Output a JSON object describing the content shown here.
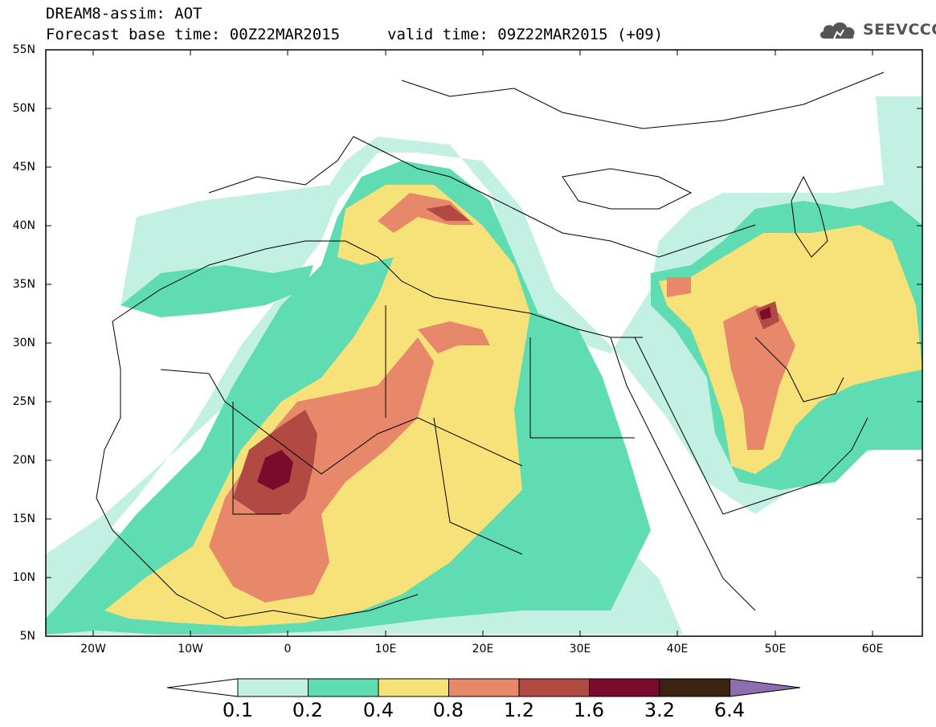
{
  "header": {
    "title": "DREAM8-assim: AOT",
    "base_time": "Forecast base time: 00Z22MAR2015",
    "valid_time": "valid time: 09Z22MAR2015 (+09)",
    "logo_text": "SEEVCCC"
  },
  "axes": {
    "lat_labels": [
      "55N",
      "50N",
      "45N",
      "40N",
      "35N",
      "30N",
      "25N",
      "20N",
      "15N",
      "10N",
      "5N"
    ],
    "lon_labels": [
      "20W",
      "10W",
      "0",
      "10E",
      "20E",
      "30E",
      "40E",
      "50E",
      "60E"
    ]
  },
  "colorbar": {
    "labels": [
      "0.1",
      "0.2",
      "0.4",
      "0.8",
      "1.2",
      "1.6",
      "3.2",
      "6.4"
    ],
    "colors": [
      "#ffffff",
      "#c2f0e3",
      "#5fdcb2",
      "#f7e27a",
      "#e8886a",
      "#b04a43",
      "#7a0b2c",
      "#3b2212",
      "#8e6db0"
    ]
  }
}
